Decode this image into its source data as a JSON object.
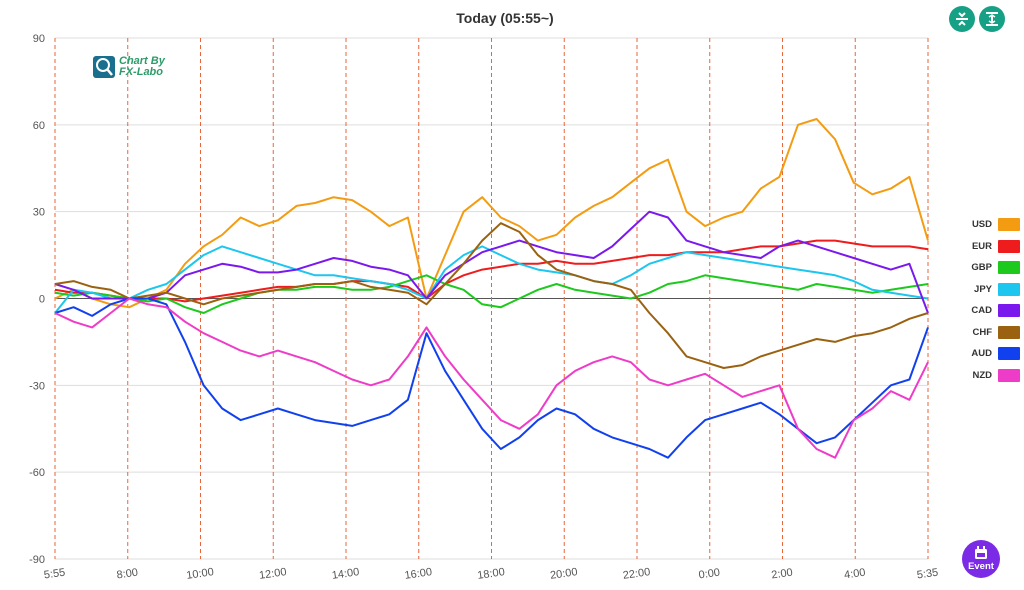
{
  "title": "Today  (05:55~)",
  "logo": {
    "line1": "Chart By",
    "line2": "FX-Labo"
  },
  "toolbar": {
    "btn_a_icon": "compress-vertical-icon",
    "btn_b_icon": "expand-vertical-icon",
    "accent": "#16a085"
  },
  "event_button": {
    "label": "Event",
    "icon": "calendar-icon",
    "color": "#7b2ae6"
  },
  "chart_data": {
    "type": "line",
    "title": "Today  (05:55~)",
    "xlabel": "",
    "ylabel": "",
    "ylim": [
      -90,
      90
    ],
    "yticks": [
      90,
      60,
      30,
      0,
      -30,
      -60,
      -90
    ],
    "xticks": [
      "5:55",
      "8:00",
      "10:00",
      "12:00",
      "14:00",
      "16:00",
      "18:00",
      "20:00",
      "22:00",
      "0:00",
      "2:00",
      "4:00",
      "5:35"
    ],
    "x": [
      "5:55",
      "6:30",
      "7:00",
      "7:30",
      "8:00",
      "8:30",
      "9:00",
      "9:30",
      "10:00",
      "10:30",
      "11:00",
      "11:30",
      "12:00",
      "12:30",
      "13:00",
      "13:30",
      "14:00",
      "14:30",
      "15:00",
      "15:30",
      "16:00",
      "16:30",
      "17:00",
      "17:30",
      "18:00",
      "18:30",
      "19:00",
      "19:30",
      "20:00",
      "20:30",
      "21:00",
      "21:30",
      "22:00",
      "22:30",
      "23:00",
      "23:30",
      "0:00",
      "0:30",
      "1:00",
      "1:30",
      "2:00",
      "2:30",
      "3:00",
      "3:30",
      "4:00",
      "4:30",
      "5:00",
      "5:35"
    ],
    "grid": true,
    "legend_position": "right",
    "series": [
      {
        "name": "USD",
        "color": "#f39c12",
        "values": [
          0,
          3,
          0,
          -2,
          -3,
          0,
          3,
          12,
          18,
          22,
          28,
          25,
          27,
          32,
          33,
          35,
          34,
          30,
          25,
          28,
          0,
          15,
          30,
          35,
          28,
          25,
          20,
          22,
          28,
          32,
          35,
          40,
          45,
          48,
          30,
          25,
          28,
          30,
          38,
          42,
          60,
          62,
          55,
          40,
          36,
          38,
          42,
          20
        ]
      },
      {
        "name": "EUR",
        "color": "#ee1c1c",
        "values": [
          3,
          2,
          2,
          1,
          0,
          0,
          0,
          -1,
          0,
          1,
          2,
          3,
          4,
          4,
          5,
          5,
          6,
          6,
          5,
          4,
          0,
          5,
          8,
          10,
          11,
          12,
          12,
          13,
          12,
          12,
          13,
          14,
          15,
          15,
          16,
          16,
          16,
          17,
          18,
          18,
          19,
          20,
          20,
          19,
          18,
          18,
          18,
          17
        ]
      },
      {
        "name": "GBP",
        "color": "#1ec91e",
        "values": [
          2,
          1,
          2,
          1,
          0,
          -1,
          0,
          -3,
          -5,
          -2,
          0,
          2,
          3,
          3,
          4,
          4,
          3,
          3,
          4,
          6,
          8,
          5,
          3,
          -2,
          -3,
          0,
          3,
          5,
          3,
          2,
          1,
          0,
          2,
          5,
          6,
          8,
          7,
          6,
          5,
          4,
          3,
          5,
          4,
          3,
          2,
          3,
          4,
          5
        ]
      },
      {
        "name": "JPY",
        "color": "#1cc6ee",
        "values": [
          -5,
          3,
          2,
          0,
          0,
          3,
          5,
          10,
          15,
          18,
          16,
          14,
          12,
          10,
          8,
          8,
          7,
          6,
          5,
          3,
          0,
          10,
          15,
          18,
          15,
          12,
          10,
          9,
          8,
          6,
          5,
          8,
          12,
          14,
          16,
          15,
          14,
          13,
          12,
          11,
          10,
          9,
          8,
          6,
          3,
          2,
          1,
          0
        ]
      },
      {
        "name": "CAD",
        "color": "#7a18ee",
        "values": [
          5,
          3,
          0,
          0,
          0,
          0,
          2,
          8,
          10,
          12,
          11,
          9,
          9,
          10,
          12,
          14,
          13,
          11,
          10,
          8,
          0,
          8,
          12,
          16,
          18,
          20,
          18,
          16,
          15,
          14,
          18,
          24,
          30,
          28,
          20,
          18,
          16,
          15,
          14,
          18,
          20,
          18,
          16,
          14,
          12,
          10,
          12,
          -5
        ]
      },
      {
        "name": "CHF",
        "color": "#9a6210",
        "values": [
          5,
          6,
          4,
          3,
          0,
          1,
          2,
          0,
          -2,
          0,
          1,
          2,
          3,
          4,
          5,
          5,
          6,
          4,
          3,
          2,
          -2,
          5,
          12,
          20,
          26,
          23,
          15,
          10,
          8,
          6,
          5,
          3,
          -5,
          -12,
          -20,
          -22,
          -24,
          -23,
          -20,
          -18,
          -16,
          -14,
          -15,
          -13,
          -12,
          -10,
          -7,
          -5
        ]
      },
      {
        "name": "AUD",
        "color": "#1141ee",
        "values": [
          -5,
          -3,
          -6,
          -2,
          0,
          0,
          -2,
          -15,
          -30,
          -38,
          -42,
          -40,
          -38,
          -40,
          -42,
          -43,
          -44,
          -42,
          -40,
          -35,
          -12,
          -25,
          -35,
          -45,
          -52,
          -48,
          -42,
          -38,
          -40,
          -45,
          -48,
          -50,
          -52,
          -55,
          -48,
          -42,
          -40,
          -38,
          -36,
          -40,
          -45,
          -50,
          -48,
          -42,
          -36,
          -30,
          -28,
          -10
        ]
      },
      {
        "name": "NZD",
        "color": "#ee3cc8",
        "values": [
          -5,
          -8,
          -10,
          -5,
          0,
          -2,
          -3,
          -8,
          -12,
          -15,
          -18,
          -20,
          -18,
          -20,
          -22,
          -25,
          -28,
          -30,
          -28,
          -20,
          -10,
          -20,
          -28,
          -35,
          -42,
          -45,
          -40,
          -30,
          -25,
          -22,
          -20,
          -22,
          -28,
          -30,
          -28,
          -26,
          -30,
          -34,
          -32,
          -30,
          -45,
          -52,
          -55,
          -42,
          -38,
          -32,
          -35,
          -22
        ]
      }
    ]
  }
}
